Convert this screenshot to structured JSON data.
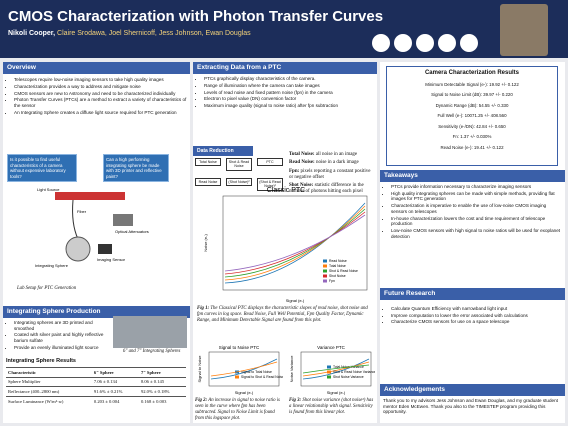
{
  "header": {
    "title": "CMOS Characterization with Photon Transfer Curves",
    "presenter": "Nikoli Cooper,",
    "coauthors": "Claire Srodawa, Joel Shernicoff, Jess Johnson, Ewan Douglas"
  },
  "overview": {
    "heading": "Overview",
    "bullets": [
      "Telescopes require low-noise imaging sensors to take high quality images",
      "Characterization provides a way to address and mitigate noise",
      "CMOS sensors are new to Astronomy and need to be characterized individually",
      "Photon Transfer Curves (PTCs) are a method to extract a variety of characteristics of the sensor",
      "An Integrating Sphere creates a diffuse light source required for PTC generation"
    ],
    "questions": [
      "Is it possible to find useful characteristics of a camera without expensive laboratory tools?",
      "Can a high performing integrating sphere be made with 3D printer and reflective paint?"
    ]
  },
  "lab_setup": {
    "labels": [
      "Light Source",
      "Fiber",
      "Optical Attenuators",
      "Integrating Sphere",
      "Imaging Sensor"
    ],
    "caption": "Lab Setup for PTC Generation"
  },
  "sphere_production": {
    "heading": "Integrating Sphere Production",
    "bullets": [
      "Integrating spheres are 3D printed and smoothed",
      "Coated with silver paint and highly reflective barium sulfate",
      "Provide an evenly illuminated light source"
    ],
    "caption": "6\" and 7\" Integrating Spheres"
  },
  "sphere_results": {
    "heading": "Integrating Sphere Results",
    "table": {
      "header": [
        "Characteristic",
        "6\" Sphere",
        "7\" Sphere"
      ],
      "rows": [
        [
          "Sphere Multiplier",
          "7.06 ± 0.134",
          "8.06 ± 0.145"
        ],
        [
          "Reflectance (400–2800 nm)",
          "91.6% ± 0.21%",
          "92.0% ± 0.18%"
        ],
        [
          "Surface Luminance (W/m²·sr)",
          "0.203 ± 0.004",
          "0.168 ± 0.003"
        ]
      ]
    }
  },
  "extracting": {
    "heading": "Extracting Data from a PTC",
    "bullets": [
      "PTCs graphically display characteristics of the camera.",
      "Range of illumination where the camera can take images",
      "Levels of read noise and fixed pattern noise (fpn) in the camera",
      "Electron to pixel value (DN) conversion factor",
      "Maximum image quality (signal to noise ratio) after fpn subtraction"
    ]
  },
  "data_reduction": {
    "heading": "Data Reduction",
    "boxes": [
      "Total Noise",
      "Shot & Read Noise",
      "PTC",
      "Read Noise",
      "(Shot Noise)²",
      "(Shot & Read Noise)²"
    ],
    "terms": [
      [
        "Total Noise:",
        "all noise in an image"
      ],
      [
        "Read Noise:",
        "noise in a dark image"
      ],
      [
        "Fpn:",
        "pixels reporting a constant positive or negative offset"
      ],
      [
        "Shot Noise:",
        "statistic difference in the number of photons hitting each pixel"
      ]
    ]
  },
  "fig1": {
    "title": "Classic PTC",
    "xlabel": "Signal (e-)",
    "ylabel": "Noise (e-)",
    "legend": [
      "Read Noise",
      "Total Noise",
      "Shot & Read Noise",
      "Shot Noise",
      "Fpn"
    ],
    "label": "Fig 1:",
    "caption": "The Classical PTC displays the characteristic slopes of read noise, shot noise and fpn curves in log space. Read Noise, Full Well Potential, Fpn Quality Factor, Dynamic Range, and Minimum Detectable Signal are found from this plot."
  },
  "fig2": {
    "title": "Signal to Noise PTC",
    "xlabel": "Signal (e-)",
    "ylabel": "Signal to Noise",
    "legend": [
      "Signal to Total Noise",
      "Signal to Shot & Read Noise"
    ],
    "label": "Fig 2:",
    "caption": "An increase in signal to noise ratio is seen in the curve where fpn has been subtracted. Signal to Noise Limit is found from this logspace plot."
  },
  "fig3": {
    "title": "Variance PTC",
    "xlabel": "Signal (e-)",
    "ylabel": "Noise Variance",
    "legend": [
      "Total Noise Variance",
      "Shot & Read Noise Variance",
      "Shot Noise Variance"
    ],
    "label": "Fig 3:",
    "caption": "Shot noise variance (shot noise²) has a linear relationship with signal. Sensitivity is found from this linear plot."
  },
  "camera_results": {
    "heading": "Camera Characterization Results",
    "lines": [
      "Minimum Detectable Signal (e-): 19.92 +/- 0.122",
      "Signal to Noise Limit (dB): 39.97 +/- 0.220",
      "Dynamic Range (dB): 54.55 +/- 0.330",
      "Full Well (e-): 10071.25 +/- 408.560",
      "Sensitivity (e-/DN): 42.84 +/- 0.650",
      "Fn: 1.37 +/- 0.030%",
      "Read Noise (e-): 19.41 +/- 0.122"
    ]
  },
  "takeaways": {
    "heading": "Takeaways",
    "bullets": [
      "PTCs provide information necessary to characterize imaging sensors",
      "High quality integrating spheres can be made with simple methods, providing flat images for PTC generation",
      "Characterization is imperative to enable the use of low-noise CMOS imaging sensors on telescopes",
      "In-house characterization lowers the cost and time requirement of telescope production",
      "Low-noise CMOS sensors with high signal to noise ratios will be used for exoplanet detection"
    ]
  },
  "future": {
    "heading": "Future Research",
    "bullets": [
      "Calculate Quantum Efficiency with narrowband light input",
      "Improve computation to lower the error associated with calculations",
      "Characterize CMOS sensors for use on a space telescope"
    ]
  },
  "acknowledgements": {
    "heading": "Acknowledgements",
    "text": "Thank you to my advisors Jess Johnson and Ewan Douglas, and my graduate student mentor Eden McEwen. Thank you also to the TIMESTEP program providing this opportunity."
  }
}
